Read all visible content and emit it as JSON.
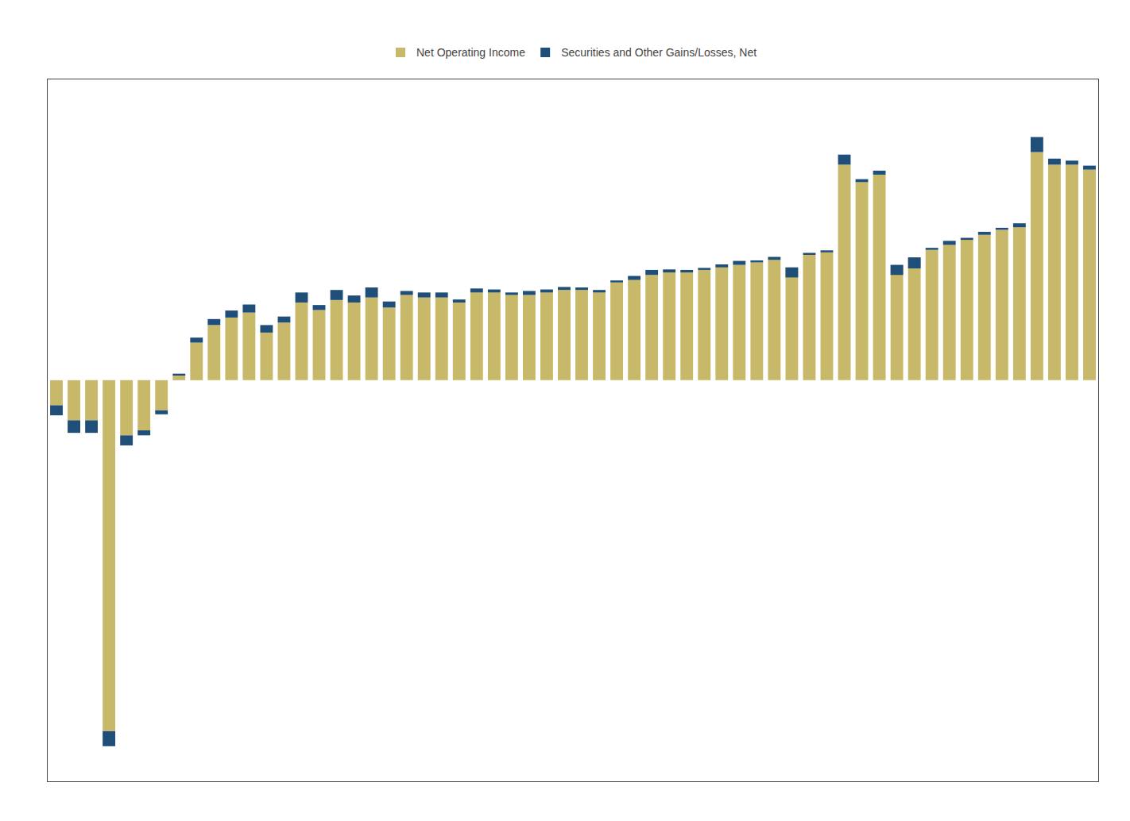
{
  "chart_data": {
    "type": "bar",
    "stacked": true,
    "categories": [
      null,
      null,
      null,
      null,
      null,
      null,
      null,
      null,
      null,
      null,
      null,
      null,
      null,
      null,
      null,
      null,
      null,
      null,
      null,
      null,
      null,
      null,
      null,
      null,
      null,
      null,
      null,
      null,
      null,
      null,
      null,
      null,
      null,
      null,
      null,
      null,
      null,
      null,
      null,
      null,
      null,
      null,
      null,
      null,
      null,
      null,
      null,
      null,
      null,
      null,
      null,
      null,
      null,
      null,
      null,
      null,
      null,
      null,
      null,
      null
    ],
    "series": [
      {
        "name": "Net Operating Income",
        "color": "#c8b86a",
        "values": [
          -50,
          -80,
          -80,
          -700,
          -110,
          -100,
          -60,
          10,
          75,
          110,
          125,
          135,
          95,
          115,
          155,
          140,
          160,
          155,
          165,
          145,
          170,
          165,
          165,
          155,
          175,
          175,
          170,
          170,
          175,
          180,
          180,
          175,
          195,
          200,
          210,
          215,
          215,
          220,
          225,
          230,
          235,
          240,
          225,
          250,
          255,
          430,
          395,
          410,
          230,
          245,
          260,
          270,
          280,
          290,
          300,
          305,
          455,
          430,
          430,
          420
        ]
      },
      {
        "name": "Securities and Other Gains/Losses, Net",
        "color": "#1f4e79",
        "values": [
          -20,
          -25,
          -25,
          -30,
          -20,
          -10,
          -8,
          3,
          10,
          12,
          14,
          16,
          15,
          12,
          20,
          10,
          20,
          14,
          20,
          12,
          8,
          10,
          10,
          6,
          8,
          6,
          5,
          8,
          6,
          6,
          5,
          5,
          4,
          8,
          10,
          6,
          5,
          4,
          6,
          8,
          4,
          6,
          -20,
          4,
          4,
          20,
          6,
          8,
          -20,
          -22,
          4,
          8,
          4,
          6,
          4,
          8,
          30,
          12,
          8,
          8
        ]
      }
    ],
    "ylim": [
      -800,
      600
    ],
    "grid": false,
    "legend": "top",
    "tick_labels": false
  }
}
